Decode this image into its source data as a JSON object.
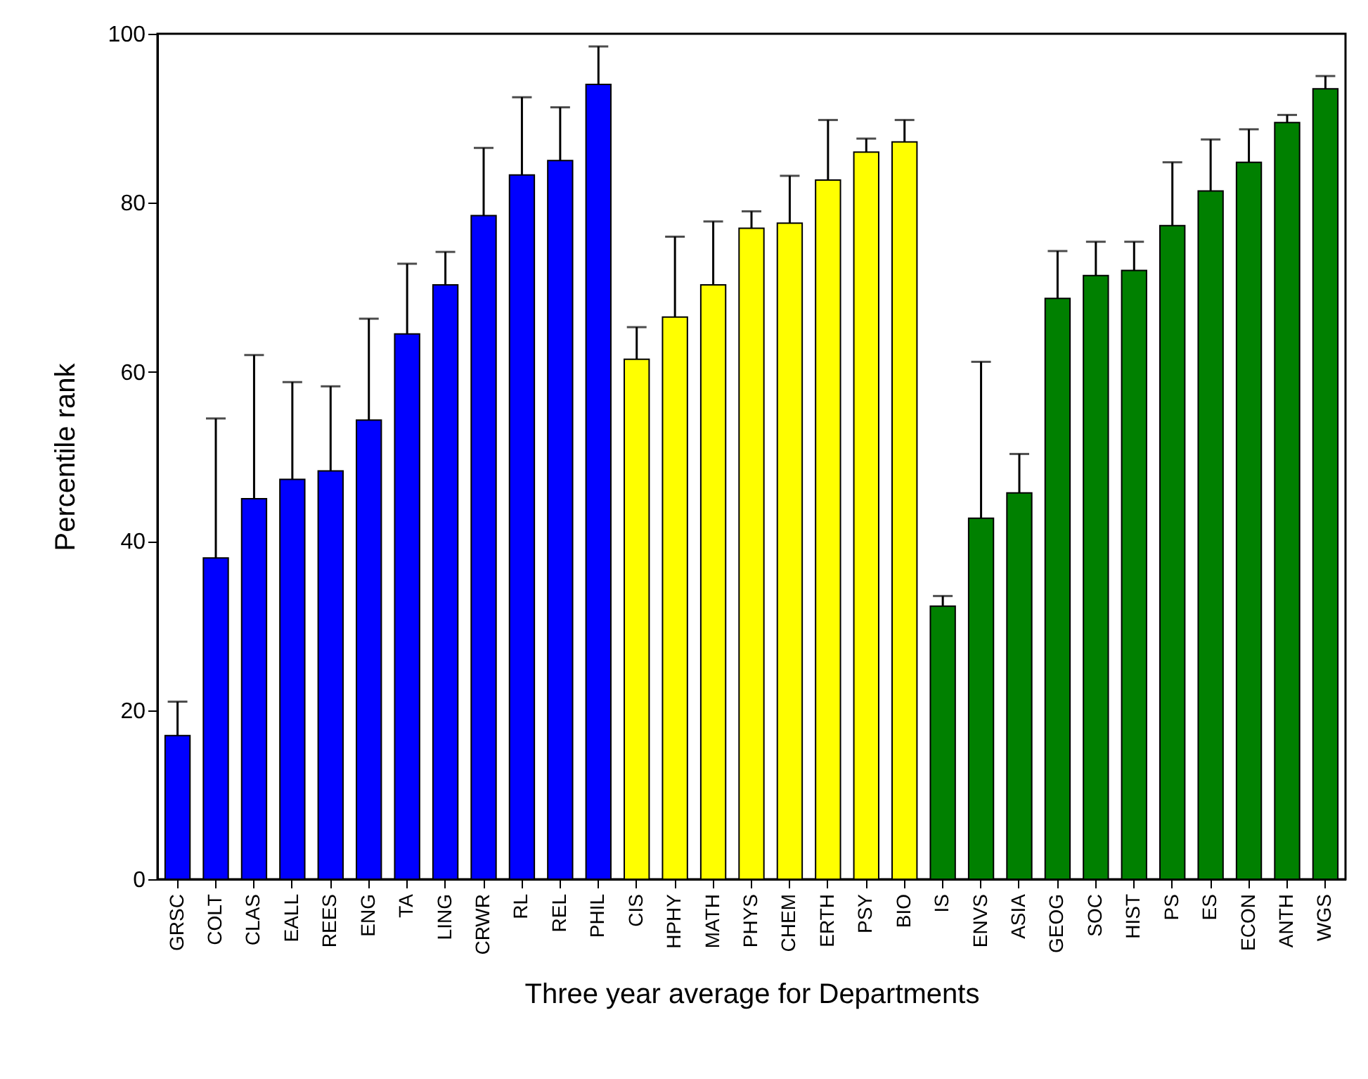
{
  "chart_data": {
    "type": "bar",
    "xlabel": "Three year average for Departments",
    "ylabel": "Percentile rank",
    "categories": [
      "GRSC",
      "COLT",
      "CLAS",
      "EALL",
      "REES",
      "ENG",
      "TA",
      "LING",
      "CRWR",
      "RL",
      "REL",
      "PHIL",
      "CIS",
      "HPHY",
      "MATH",
      "PHYS",
      "CHEM",
      "ERTH",
      "PSY",
      "BIO",
      "IS",
      "ENVS",
      "ASIA",
      "GEOG",
      "SOC",
      "HIST",
      "PS",
      "ES",
      "ECON",
      "ANTH",
      "WGS"
    ],
    "values": [
      17,
      38,
      45,
      47.3,
      48.3,
      54.3,
      64.5,
      70.3,
      78.5,
      83.3,
      85,
      94,
      61.5,
      66.5,
      70.3,
      77,
      77.6,
      82.7,
      86,
      87.2,
      32.3,
      42.7,
      45.7,
      68.7,
      71.4,
      72,
      77.3,
      81.4,
      84.8,
      89.5,
      93.5
    ],
    "errors": [
      [
        17,
        21
      ],
      [
        38,
        54.5
      ],
      [
        45,
        62
      ],
      [
        47.3,
        58.8
      ],
      [
        48.3,
        58.3
      ],
      [
        54.3,
        66.3
      ],
      [
        64.5,
        72.8
      ],
      [
        70.3,
        74.2
      ],
      [
        78.5,
        86.5
      ],
      [
        83.3,
        92.5
      ],
      [
        85,
        91.3
      ],
      [
        94,
        98.5
      ],
      [
        61.5,
        65.3
      ],
      [
        66.5,
        76
      ],
      [
        70.3,
        77.8
      ],
      [
        77,
        79
      ],
      [
        77.6,
        83.2
      ],
      [
        82.7,
        89.8
      ],
      [
        86,
        87.6
      ],
      [
        87.2,
        89.8
      ],
      [
        32.3,
        33.5
      ],
      [
        42.7,
        61.2
      ],
      [
        45.7,
        50.3
      ],
      [
        68.7,
        74.3
      ],
      [
        71.4,
        75.4
      ],
      [
        72,
        75.4
      ],
      [
        77.3,
        84.8
      ],
      [
        81.4,
        87.5
      ],
      [
        84.8,
        88.7
      ],
      [
        89.5,
        90.4
      ],
      [
        93.5,
        95
      ]
    ],
    "colors": [
      "#0000ff",
      "#0000ff",
      "#0000ff",
      "#0000ff",
      "#0000ff",
      "#0000ff",
      "#0000ff",
      "#0000ff",
      "#0000ff",
      "#0000ff",
      "#0000ff",
      "#0000ff",
      "#ffff00",
      "#ffff00",
      "#ffff00",
      "#ffff00",
      "#ffff00",
      "#ffff00",
      "#ffff00",
      "#ffff00",
      "#008000",
      "#008000",
      "#008000",
      "#008000",
      "#008000",
      "#008000",
      "#008000",
      "#008000",
      "#008000",
      "#008000",
      "#008000"
    ],
    "ylim": [
      0,
      100
    ],
    "yticks": [
      0,
      20,
      40,
      60,
      80,
      100
    ],
    "grid": false
  }
}
